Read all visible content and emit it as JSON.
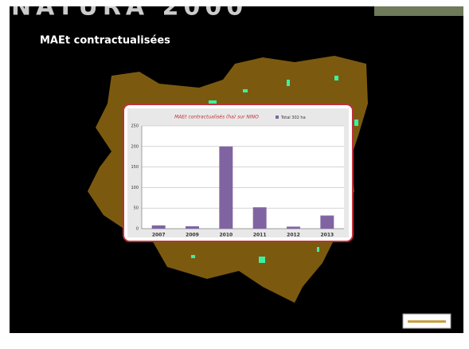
{
  "header": {
    "banner": "NATURA 2000",
    "title": "MAEt contractualisées"
  },
  "chart_data": {
    "type": "bar",
    "title": "MAEt contractualisés (ha) sur NINO",
    "categories": [
      "2007",
      "2009",
      "2010",
      "2011",
      "2012",
      "2013"
    ],
    "series": [
      {
        "name": "Total 302 ha",
        "color": "#8064a2",
        "values": [
          8,
          6,
          200,
          52,
          5,
          32
        ]
      }
    ],
    "ylim": [
      0,
      250
    ],
    "yticks": [
      0,
      50,
      100,
      150,
      200,
      250
    ],
    "grid": true
  }
}
